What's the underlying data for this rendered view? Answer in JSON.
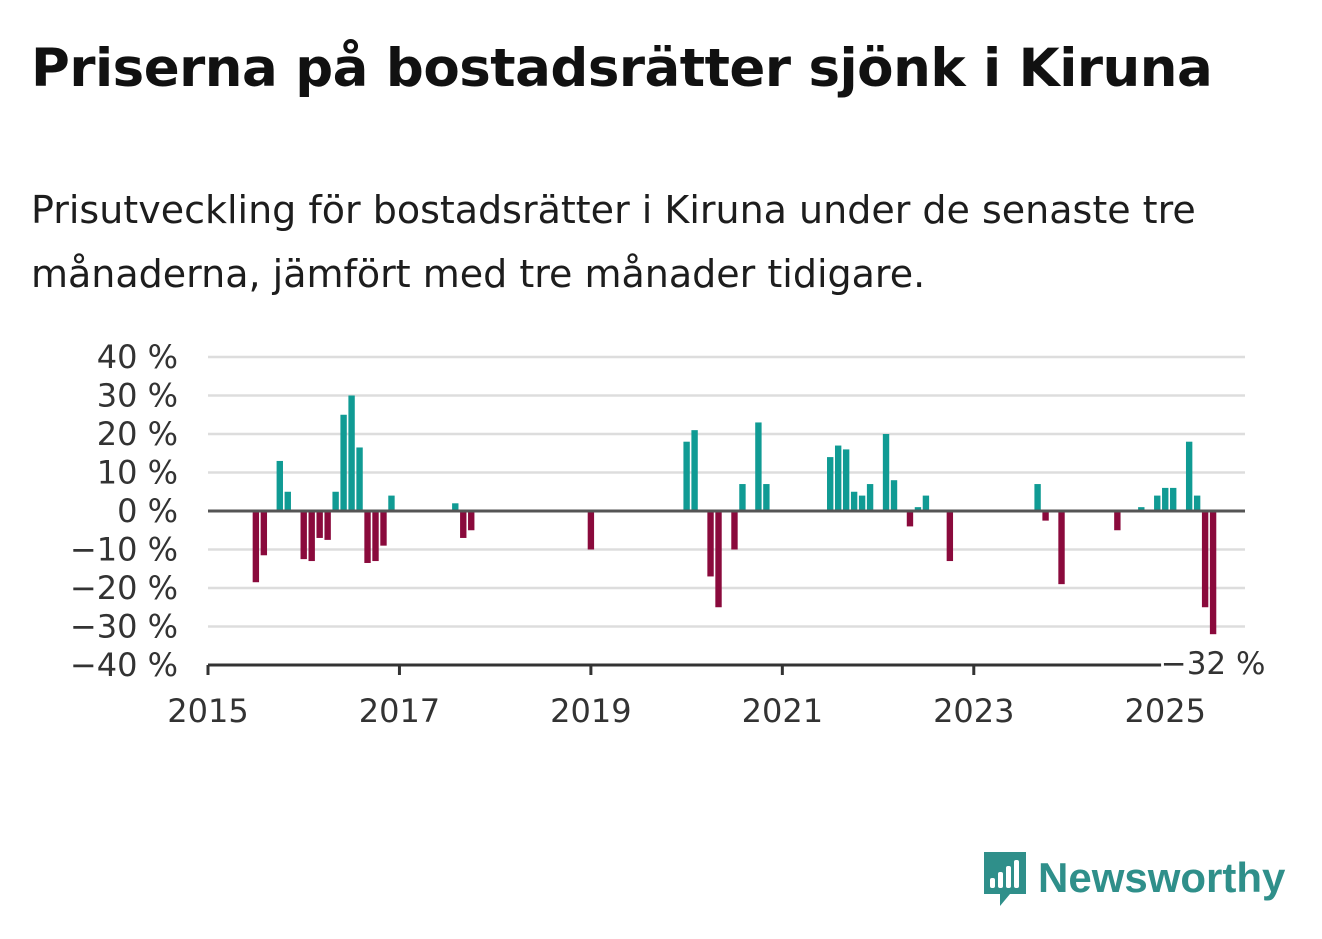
{
  "title": "Priserna på bostadsrätter sjönk i Kiruna",
  "subtitle": "Prisutveckling för bostadsrätter i Kiruna under de senaste tre månaderna, jämfört med tre månader tidigare.",
  "brand": {
    "name": "Newsworthy",
    "icon": "newsworthy-logo-icon",
    "color": "#2f8f8a"
  },
  "colors": {
    "positive": "#109b94",
    "negative": "#8a0a3c",
    "grid": "#dddddd",
    "axis": "#333333"
  },
  "chart_data": {
    "type": "bar",
    "ylim": [
      -40,
      40
    ],
    "yticks": [
      40,
      30,
      20,
      10,
      0,
      -10,
      -20,
      -30,
      -40
    ],
    "ytick_labels": [
      "40 %",
      "30 %",
      "20 %",
      "10 %",
      "0 %",
      "−10 %",
      "−20 %",
      "−30 %",
      "−40 %"
    ],
    "xticks": [
      "2015",
      "2017",
      "2019",
      "2021",
      "2023",
      "2025"
    ],
    "xlim": [
      "2015-01",
      "2025-11"
    ],
    "grid": true,
    "annotation": {
      "x": "2025-07",
      "label": "−32 %"
    },
    "points": [
      {
        "x": "2015-07",
        "y": -18.5
      },
      {
        "x": "2015-08",
        "y": -11.5
      },
      {
        "x": "2015-10",
        "y": 13
      },
      {
        "x": "2015-11",
        "y": 5
      },
      {
        "x": "2016-01",
        "y": -12.5
      },
      {
        "x": "2016-02",
        "y": -13
      },
      {
        "x": "2016-03",
        "y": -7
      },
      {
        "x": "2016-04",
        "y": -7.5
      },
      {
        "x": "2016-05",
        "y": 5
      },
      {
        "x": "2016-06",
        "y": 25
      },
      {
        "x": "2016-07",
        "y": 30
      },
      {
        "x": "2016-08",
        "y": 16.5
      },
      {
        "x": "2016-09",
        "y": -13.5
      },
      {
        "x": "2016-10",
        "y": -13
      },
      {
        "x": "2016-11",
        "y": -9
      },
      {
        "x": "2016-12",
        "y": 4
      },
      {
        "x": "2017-08",
        "y": 2
      },
      {
        "x": "2017-09",
        "y": -7
      },
      {
        "x": "2017-10",
        "y": -5
      },
      {
        "x": "2019-01",
        "y": -10
      },
      {
        "x": "2020-01",
        "y": 18
      },
      {
        "x": "2020-02",
        "y": 21
      },
      {
        "x": "2020-04",
        "y": -17
      },
      {
        "x": "2020-05",
        "y": -25
      },
      {
        "x": "2020-07",
        "y": -10
      },
      {
        "x": "2020-08",
        "y": 7
      },
      {
        "x": "2020-10",
        "y": 23
      },
      {
        "x": "2020-11",
        "y": 7
      },
      {
        "x": "2021-07",
        "y": 14
      },
      {
        "x": "2021-08",
        "y": 17
      },
      {
        "x": "2021-09",
        "y": 16
      },
      {
        "x": "2021-10",
        "y": 5
      },
      {
        "x": "2021-11",
        "y": 4
      },
      {
        "x": "2021-12",
        "y": 7
      },
      {
        "x": "2022-02",
        "y": 20
      },
      {
        "x": "2022-03",
        "y": 8
      },
      {
        "x": "2022-05",
        "y": -4
      },
      {
        "x": "2022-06",
        "y": 1
      },
      {
        "x": "2022-07",
        "y": 4
      },
      {
        "x": "2022-10",
        "y": -13
      },
      {
        "x": "2023-09",
        "y": 7
      },
      {
        "x": "2023-10",
        "y": -2.5
      },
      {
        "x": "2023-12",
        "y": -19
      },
      {
        "x": "2024-07",
        "y": -5
      },
      {
        "x": "2024-10",
        "y": 1
      },
      {
        "x": "2024-12",
        "y": 4
      },
      {
        "x": "2025-01",
        "y": 6
      },
      {
        "x": "2025-02",
        "y": 6
      },
      {
        "x": "2025-04",
        "y": 18
      },
      {
        "x": "2025-05",
        "y": 4
      },
      {
        "x": "2025-06",
        "y": -25
      },
      {
        "x": "2025-07",
        "y": -32
      }
    ]
  }
}
